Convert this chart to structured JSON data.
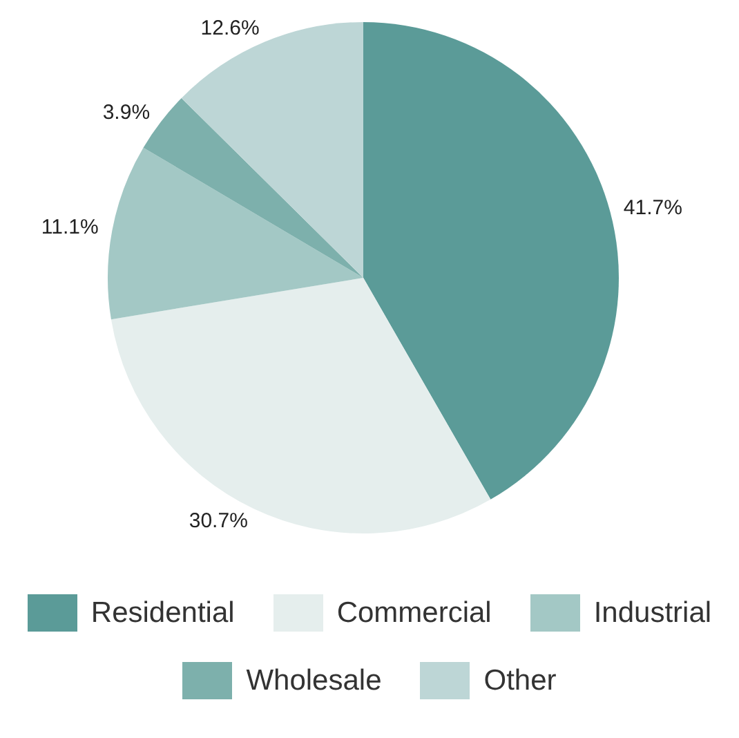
{
  "chart_data": {
    "type": "pie",
    "categories": [
      "Residential",
      "Commercial",
      "Industrial",
      "Wholesale",
      "Other"
    ],
    "values": [
      41.7,
      30.7,
      11.1,
      3.9,
      12.6
    ],
    "colors": [
      "#5b9b98",
      "#e5eeed",
      "#a3c8c5",
      "#7db0ac",
      "#bdd6d6"
    ],
    "value_labels": [
      "41.7%",
      "30.7%",
      "11.1%",
      "3.9%",
      "12.6%"
    ],
    "legend": "bottom"
  }
}
